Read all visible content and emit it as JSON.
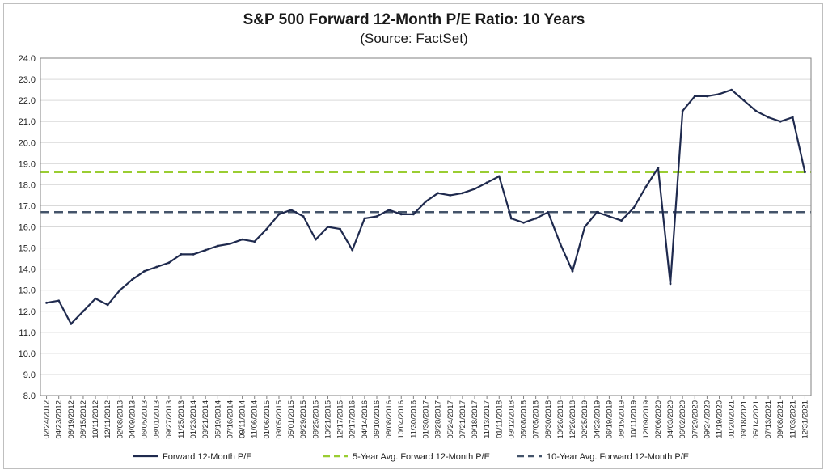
{
  "chart_data": {
    "type": "line",
    "title": "S&P 500 Forward 12-Month P/E Ratio: 10 Years",
    "subtitle": "(Source: FactSet)",
    "ylim": [
      8.0,
      24.0
    ],
    "yticks": [
      "8.0",
      "9.0",
      "10.0",
      "11.0",
      "12.0",
      "13.0",
      "14.0",
      "15.0",
      "16.0",
      "17.0",
      "18.0",
      "19.0",
      "20.0",
      "21.0",
      "22.0",
      "23.0",
      "24.0"
    ],
    "grid": "horizontal",
    "legend_position": "bottom",
    "x_tick_labels": [
      "02/24/2012",
      "04/23/2012",
      "06/19/2012",
      "08/15/2012",
      "10/11/2012",
      "12/11/2012",
      "02/08/2013",
      "04/09/2013",
      "06/05/2013",
      "08/01/2013",
      "09/27/2013",
      "11/25/2013",
      "01/23/2014",
      "03/21/2014",
      "05/19/2014",
      "07/16/2014",
      "09/11/2014",
      "11/06/2014",
      "01/06/2015",
      "03/05/2015",
      "05/01/2015",
      "06/29/2015",
      "08/25/2015",
      "10/21/2015",
      "12/17/2015",
      "02/17/2016",
      "04/14/2016",
      "06/10/2016",
      "08/08/2016",
      "10/04/2016",
      "11/30/2016",
      "01/30/2017",
      "03/28/2017",
      "05/24/2017",
      "07/21/2017",
      "09/18/2017",
      "11/13/2017",
      "01/11/2018",
      "03/12/2018",
      "05/08/2018",
      "07/05/2018",
      "08/30/2018",
      "10/26/2018",
      "12/26/2018",
      "02/25/2019",
      "04/23/2019",
      "06/19/2019",
      "08/15/2019",
      "10/11/2019",
      "12/09/2019",
      "02/06/2020",
      "04/03/2020",
      "06/02/2020",
      "07/29/2020",
      "09/24/2020",
      "11/19/2020",
      "01/20/2021",
      "03/18/2021",
      "05/14/2021",
      "07/13/2021",
      "09/08/2021",
      "11/03/2021",
      "12/31/2021"
    ],
    "series": [
      {
        "name": "Forward 12-Month P/E",
        "color": "#1f2a4e",
        "style": "solid",
        "x": [
          "02/24/2012",
          "04/23/2012",
          "06/19/2012",
          "08/15/2012",
          "10/11/2012",
          "12/11/2012",
          "02/08/2013",
          "04/09/2013",
          "06/05/2013",
          "08/01/2013",
          "09/27/2013",
          "11/25/2013",
          "01/23/2014",
          "03/21/2014",
          "05/19/2014",
          "07/16/2014",
          "09/11/2014",
          "11/06/2014",
          "01/06/2015",
          "03/05/2015",
          "05/01/2015",
          "06/29/2015",
          "08/25/2015",
          "10/21/2015",
          "12/17/2015",
          "02/17/2016",
          "04/14/2016",
          "06/10/2016",
          "08/08/2016",
          "10/04/2016",
          "11/30/2016",
          "01/30/2017",
          "03/28/2017",
          "05/24/2017",
          "07/21/2017",
          "09/18/2017",
          "11/13/2017",
          "01/11/2018",
          "03/12/2018",
          "05/08/2018",
          "07/05/2018",
          "08/30/2018",
          "10/26/2018",
          "12/26/2018",
          "02/25/2019",
          "04/23/2019",
          "06/19/2019",
          "08/15/2019",
          "10/11/2019",
          "12/09/2019",
          "02/06/2020",
          "04/03/2020",
          "06/02/2020",
          "07/29/2020",
          "09/24/2020",
          "11/19/2020",
          "01/20/2021",
          "03/18/2021",
          "05/14/2021",
          "07/13/2021",
          "09/08/2021",
          "11/03/2021",
          "12/31/2021"
        ],
        "values": [
          12.4,
          12.5,
          11.4,
          12.0,
          12.6,
          12.3,
          13.0,
          13.5,
          13.9,
          14.1,
          14.3,
          14.7,
          14.7,
          14.9,
          15.1,
          15.2,
          15.4,
          15.3,
          15.9,
          16.6,
          16.8,
          16.5,
          15.4,
          16.0,
          15.9,
          14.9,
          16.4,
          16.5,
          16.8,
          16.6,
          16.6,
          17.2,
          17.6,
          17.5,
          17.6,
          17.8,
          18.1,
          18.4,
          16.4,
          16.2,
          16.4,
          16.7,
          15.2,
          13.9,
          16.0,
          16.7,
          16.5,
          16.3,
          16.9,
          17.9,
          18.8,
          13.3,
          21.5,
          22.2,
          22.2,
          22.3,
          22.5,
          22.0,
          21.5,
          21.2,
          21.0,
          21.2,
          18.6
        ]
      },
      {
        "name": "5-Year Avg. Forward 12-Month P/E",
        "color": "#9acd32",
        "style": "dashed",
        "value": 18.6
      },
      {
        "name": "10-Year Avg. Forward 12-Month P/E",
        "color": "#44546a",
        "style": "dashed",
        "value": 16.7
      }
    ]
  }
}
